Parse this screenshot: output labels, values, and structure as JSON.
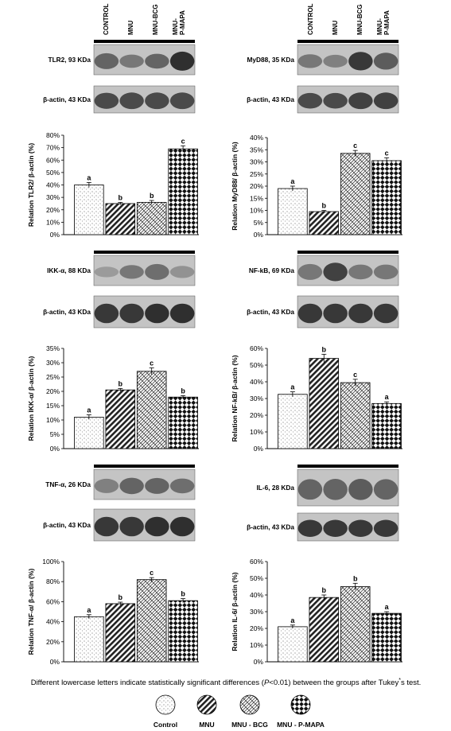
{
  "group_headers": [
    "CONTROL",
    "MNU",
    "MNU-BCG",
    "MNU-\nP-MAPA"
  ],
  "blots": {
    "tlr2": "TLR2, 93 KDa",
    "tlr2_actin": "β-actin, 43 KDa",
    "myd88": "MyD88, 35 KDa",
    "myd88_actin": "β-actin, 43 KDa",
    "ikk": "IKK-α, 88 KDa",
    "ikk_actin": "β-actin, 43 KDa",
    "nfkb": "NF-kB, 69 KDa",
    "nfkb_actin": "β-actin, 43 KDa",
    "tnf": "TNF-α, 26 KDa",
    "tnf_actin": "β-actin, 43 KDa",
    "il6": "IL-6, 28 KDa",
    "il6_actin": "β-actin, 43 KDa"
  },
  "chart_data": [
    {
      "type": "bar",
      "id": "tlr2",
      "ylabel": "Relation TLR2/ β-actin (%)",
      "yticks": [
        "0%",
        "10%",
        "20%",
        "30%",
        "40%",
        "50%",
        "60%",
        "70%",
        "80%"
      ],
      "ylim": [
        0,
        80
      ],
      "values": [
        40,
        25,
        26,
        69
      ],
      "errors": [
        2,
        1,
        1.5,
        2.5
      ],
      "letters": [
        "a",
        "b",
        "b",
        "c"
      ]
    },
    {
      "type": "bar",
      "id": "myd88",
      "ylabel": "Relation MyD88/ β-actin (%)",
      "yticks": [
        "0%",
        "5%",
        "10%",
        "15%",
        "20%",
        "25%",
        "30%",
        "35%",
        "40%"
      ],
      "ylim": [
        0,
        40
      ],
      "values": [
        19,
        9.5,
        33.5,
        30.5
      ],
      "errors": [
        1,
        0.5,
        1.2,
        1.2
      ],
      "letters": [
        "a",
        "b",
        "c",
        "c"
      ]
    },
    {
      "type": "bar",
      "id": "ikk",
      "ylabel": "Relation IKK-α/ β-actin (%)",
      "yticks": [
        "0%",
        "5%",
        "10%",
        "15%",
        "20%",
        "25%",
        "30%",
        "35%"
      ],
      "ylim": [
        0,
        35
      ],
      "values": [
        11,
        20.5,
        27,
        18
      ],
      "errors": [
        0.8,
        0.5,
        1.2,
        0.5
      ],
      "letters": [
        "a",
        "b",
        "c",
        "b"
      ]
    },
    {
      "type": "bar",
      "id": "nfkb",
      "ylabel": "Relation NF-kB/ β-actin (%)",
      "yticks": [
        "0%",
        "10%",
        "20%",
        "30%",
        "40%",
        "50%",
        "60%"
      ],
      "ylim": [
        0,
        60
      ],
      "values": [
        32.5,
        54,
        39.5,
        27
      ],
      "errors": [
        1.5,
        2.5,
        2,
        1
      ],
      "letters": [
        "a",
        "b",
        "c",
        "a"
      ]
    },
    {
      "type": "bar",
      "id": "tnf",
      "ylabel": "Relation TNF-α/ β-actin (%)",
      "yticks": [
        "0%",
        "20%",
        "40%",
        "60%",
        "80%",
        "100%"
      ],
      "ylim": [
        0,
        100
      ],
      "values": [
        45,
        58,
        82,
        61
      ],
      "errors": [
        2,
        1.5,
        2,
        2
      ],
      "letters": [
        "a",
        "b",
        "c",
        "b"
      ]
    },
    {
      "type": "bar",
      "id": "il6",
      "ylabel": "Relation IL-6/ β-actin (%)",
      "yticks": [
        "0%",
        "10%",
        "20%",
        "30%",
        "40%",
        "50%",
        "60%"
      ],
      "ylim": [
        0,
        60
      ],
      "values": [
        21,
        38.5,
        45,
        29
      ],
      "errors": [
        1,
        1.5,
        2,
        1
      ],
      "letters": [
        "a",
        "b",
        "b",
        "a"
      ]
    }
  ],
  "caption": {
    "before": "Different lowercase letters indicate statistically significant differences (",
    "p": "P",
    "after": "<0.01) between the groups after Tukey",
    "mark": "*",
    "end": "s test."
  },
  "legend": [
    "Control",
    "MNU",
    "MNU - BCG",
    "MNU - P-MAPA"
  ],
  "colors": {
    "ink": "#000000",
    "paper": "#ffffff",
    "blot_bg": "#c8c8c8"
  }
}
